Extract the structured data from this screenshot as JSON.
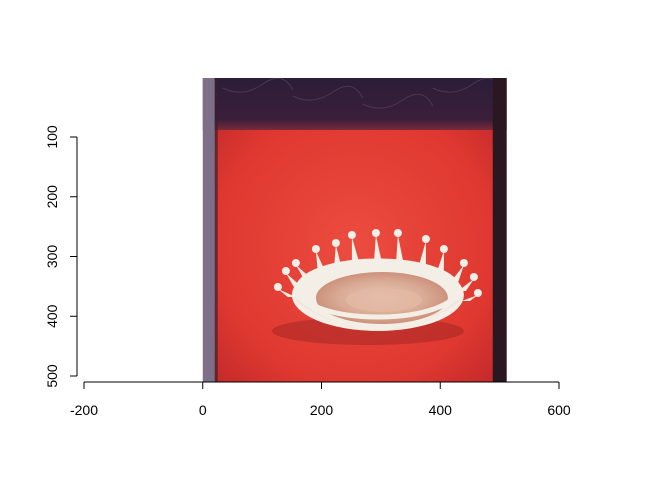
{
  "chart_data": {
    "type": "image-raster",
    "title": "",
    "xlabel": "",
    "ylabel": "",
    "xlim": [
      -200,
      600
    ],
    "ylim": [
      500,
      100
    ],
    "y_reversed": true,
    "x_ticks": [
      -200,
      0,
      200,
      400,
      600
    ],
    "y_ticks": [
      100,
      200,
      300,
      400,
      500
    ],
    "x_tick_labels": [
      "-200",
      "0",
      "200",
      "400",
      "600"
    ],
    "y_tick_labels": [
      "100",
      "200",
      "300",
      "400",
      "500"
    ],
    "image_extent": {
      "x": [
        0,
        512
      ],
      "y": [
        0,
        512
      ]
    },
    "image_content": "photograph-milk-drop-coronet",
    "colors": {
      "background": "#e23a34",
      "top_band": "#2a1a35",
      "left_strip": "#7d6f88",
      "right_strip": "#2a1720",
      "milk": "#f3efe6"
    },
    "grid": false
  }
}
